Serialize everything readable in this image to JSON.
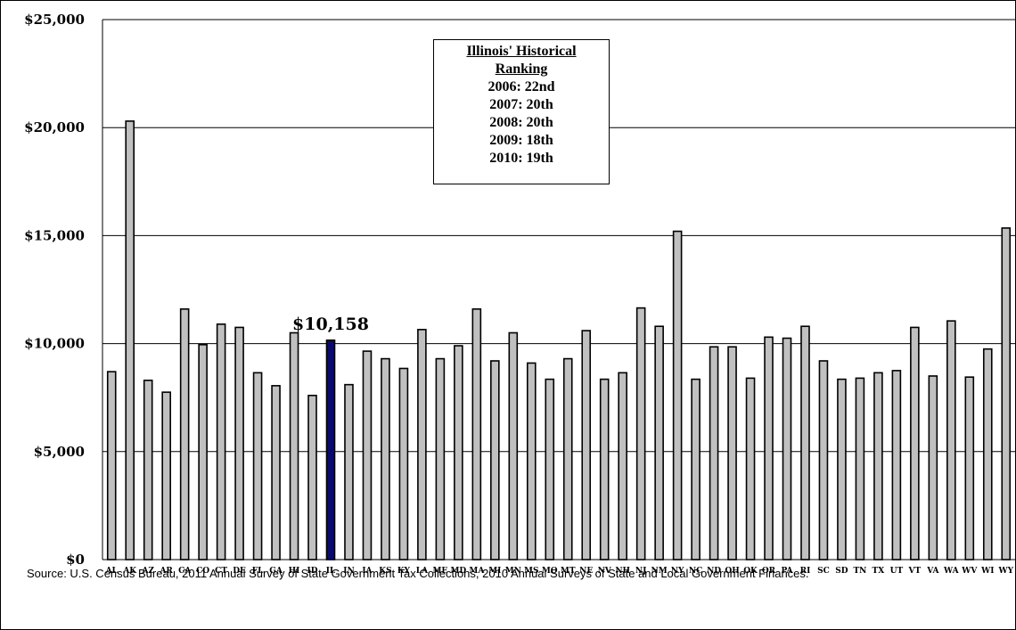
{
  "chart_data": {
    "type": "bar",
    "ylim": [
      0,
      25000
    ],
    "yticks": [
      "$0",
      "$5,000",
      "$10,000",
      "$15,000",
      "$20,000",
      "$25,000"
    ],
    "ytick_values": [
      0,
      5000,
      10000,
      15000,
      20000,
      25000
    ],
    "grid": true,
    "categories": [
      "AL",
      "AK",
      "AZ",
      "AR",
      "CA",
      "CO",
      "CT",
      "DE",
      "FL",
      "GA",
      "HI",
      "ID",
      "IL",
      "IN",
      "IA",
      "KS",
      "KY",
      "LA",
      "ME",
      "MD",
      "MA",
      "MI",
      "MN",
      "MS",
      "MO",
      "MT",
      "NE",
      "NV",
      "NH",
      "NJ",
      "NM",
      "NY",
      "NC",
      "ND",
      "OH",
      "OK",
      "OR",
      "PA",
      "RI",
      "SC",
      "SD",
      "TN",
      "TX",
      "UT",
      "VT",
      "VA",
      "WA",
      "WV",
      "WI",
      "WY"
    ],
    "values": [
      8700,
      20300,
      8300,
      7750,
      11600,
      9950,
      10900,
      10750,
      8650,
      8050,
      10500,
      7600,
      10158,
      8100,
      9650,
      9300,
      8850,
      10650,
      9300,
      9900,
      11600,
      9200,
      10500,
      9100,
      8350,
      9300,
      10600,
      8350,
      8650,
      11650,
      10800,
      15200,
      8350,
      9850,
      9850,
      8400,
      10300,
      10250,
      10800,
      9200,
      8350,
      8400,
      8650,
      8750,
      10750,
      8500,
      11050,
      8450,
      9750,
      15350
    ],
    "highlight": "IL",
    "highlight_color": "#0a0a6e",
    "bar_color": "#c0c0c0",
    "annotation": "$10,158"
  },
  "ranking_box": {
    "title_line1": "Illinois' Historical",
    "title_line2": "Ranking",
    "rows": [
      "2006:  22nd",
      "2007:  20th",
      "2008:  20th",
      "2009:  18th",
      "2010:  19th"
    ]
  },
  "source": "Source: U.S. Census Bureau, 2011 Annual Survey of State Government Tax Collections, 2010 Annual Surveys of State and Local Government Finances."
}
